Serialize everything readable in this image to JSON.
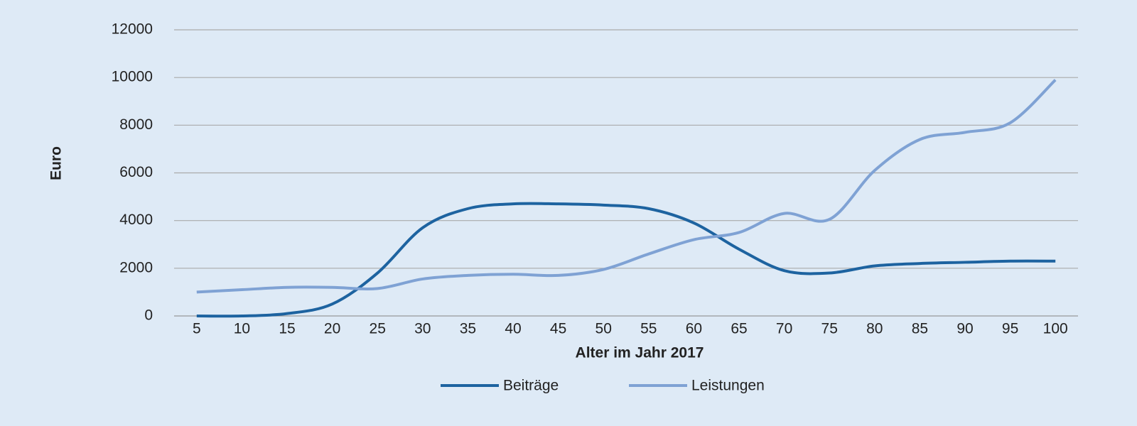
{
  "chart_data": {
    "type": "line",
    "y_label": "Euro",
    "x_label": "Alter im Jahr 2017",
    "categories": [
      "5",
      "10",
      "15",
      "20",
      "25",
      "30",
      "35",
      "40",
      "45",
      "50",
      "55",
      "60",
      "65",
      "70",
      "75",
      "80",
      "85",
      "90",
      "95",
      "100"
    ],
    "series": [
      {
        "name": "Beiträge",
        "color": "#1d63a0",
        "values": [
          0,
          0,
          100,
          500,
          1800,
          3700,
          4500,
          4700,
          4700,
          4650,
          4500,
          3900,
          2800,
          1900,
          1800,
          2100,
          2200,
          2250,
          2300,
          2300
        ]
      },
      {
        "name": "Leistungen",
        "color": "#7fa2d4",
        "values": [
          1000,
          1100,
          1200,
          1200,
          1150,
          1550,
          1700,
          1750,
          1700,
          1950,
          2600,
          3200,
          3500,
          4300,
          4050,
          6100,
          7400,
          7700,
          8100,
          9900
        ]
      }
    ],
    "ylim": [
      0,
      12000
    ],
    "yticks": [
      0,
      2000,
      4000,
      6000,
      8000,
      10000,
      12000
    ],
    "grid": true,
    "legend": "bottom"
  }
}
